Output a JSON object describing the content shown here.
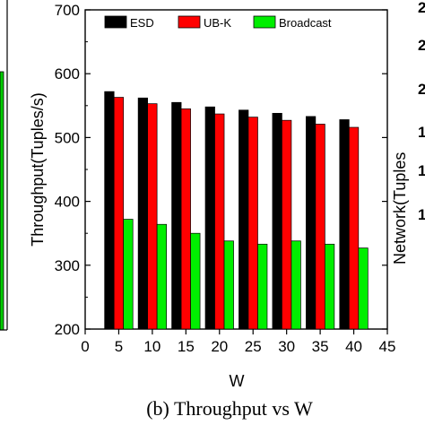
{
  "caption": "(b)  Throughput vs W",
  "chart_data": {
    "type": "bar",
    "xlabel": "W",
    "ylabel": "Throughput(Tuples/s)",
    "xlim": [
      0,
      45
    ],
    "ylim": [
      200,
      700
    ],
    "xticks": [
      "0",
      "5",
      "10",
      "15",
      "20",
      "25",
      "30",
      "35",
      "40",
      "45"
    ],
    "yticks": [
      "200",
      "300",
      "400",
      "500",
      "600",
      "700"
    ],
    "categories": [
      5,
      10,
      15,
      20,
      25,
      30,
      35,
      40
    ],
    "legend_position": "top",
    "series": [
      {
        "name": "ESD",
        "color": "#000000",
        "values": [
          572,
          562,
          555,
          548,
          543,
          538,
          533,
          528
        ]
      },
      {
        "name": "UB-K",
        "color": "#ff0000",
        "values": [
          563,
          553,
          545,
          537,
          532,
          527,
          521,
          516
        ]
      },
      {
        "name": "Broadcast",
        "color": "#00ee00",
        "values": [
          372,
          364,
          350,
          338,
          333,
          338,
          333,
          327
        ]
      }
    ]
  },
  "left_panel": {
    "bar_color": "#00cc00"
  },
  "right_panel": {
    "ylabel_fragment": "Network(Tuples",
    "tick_fragments": [
      "2",
      "2",
      "2",
      "1",
      "1",
      "1"
    ]
  }
}
